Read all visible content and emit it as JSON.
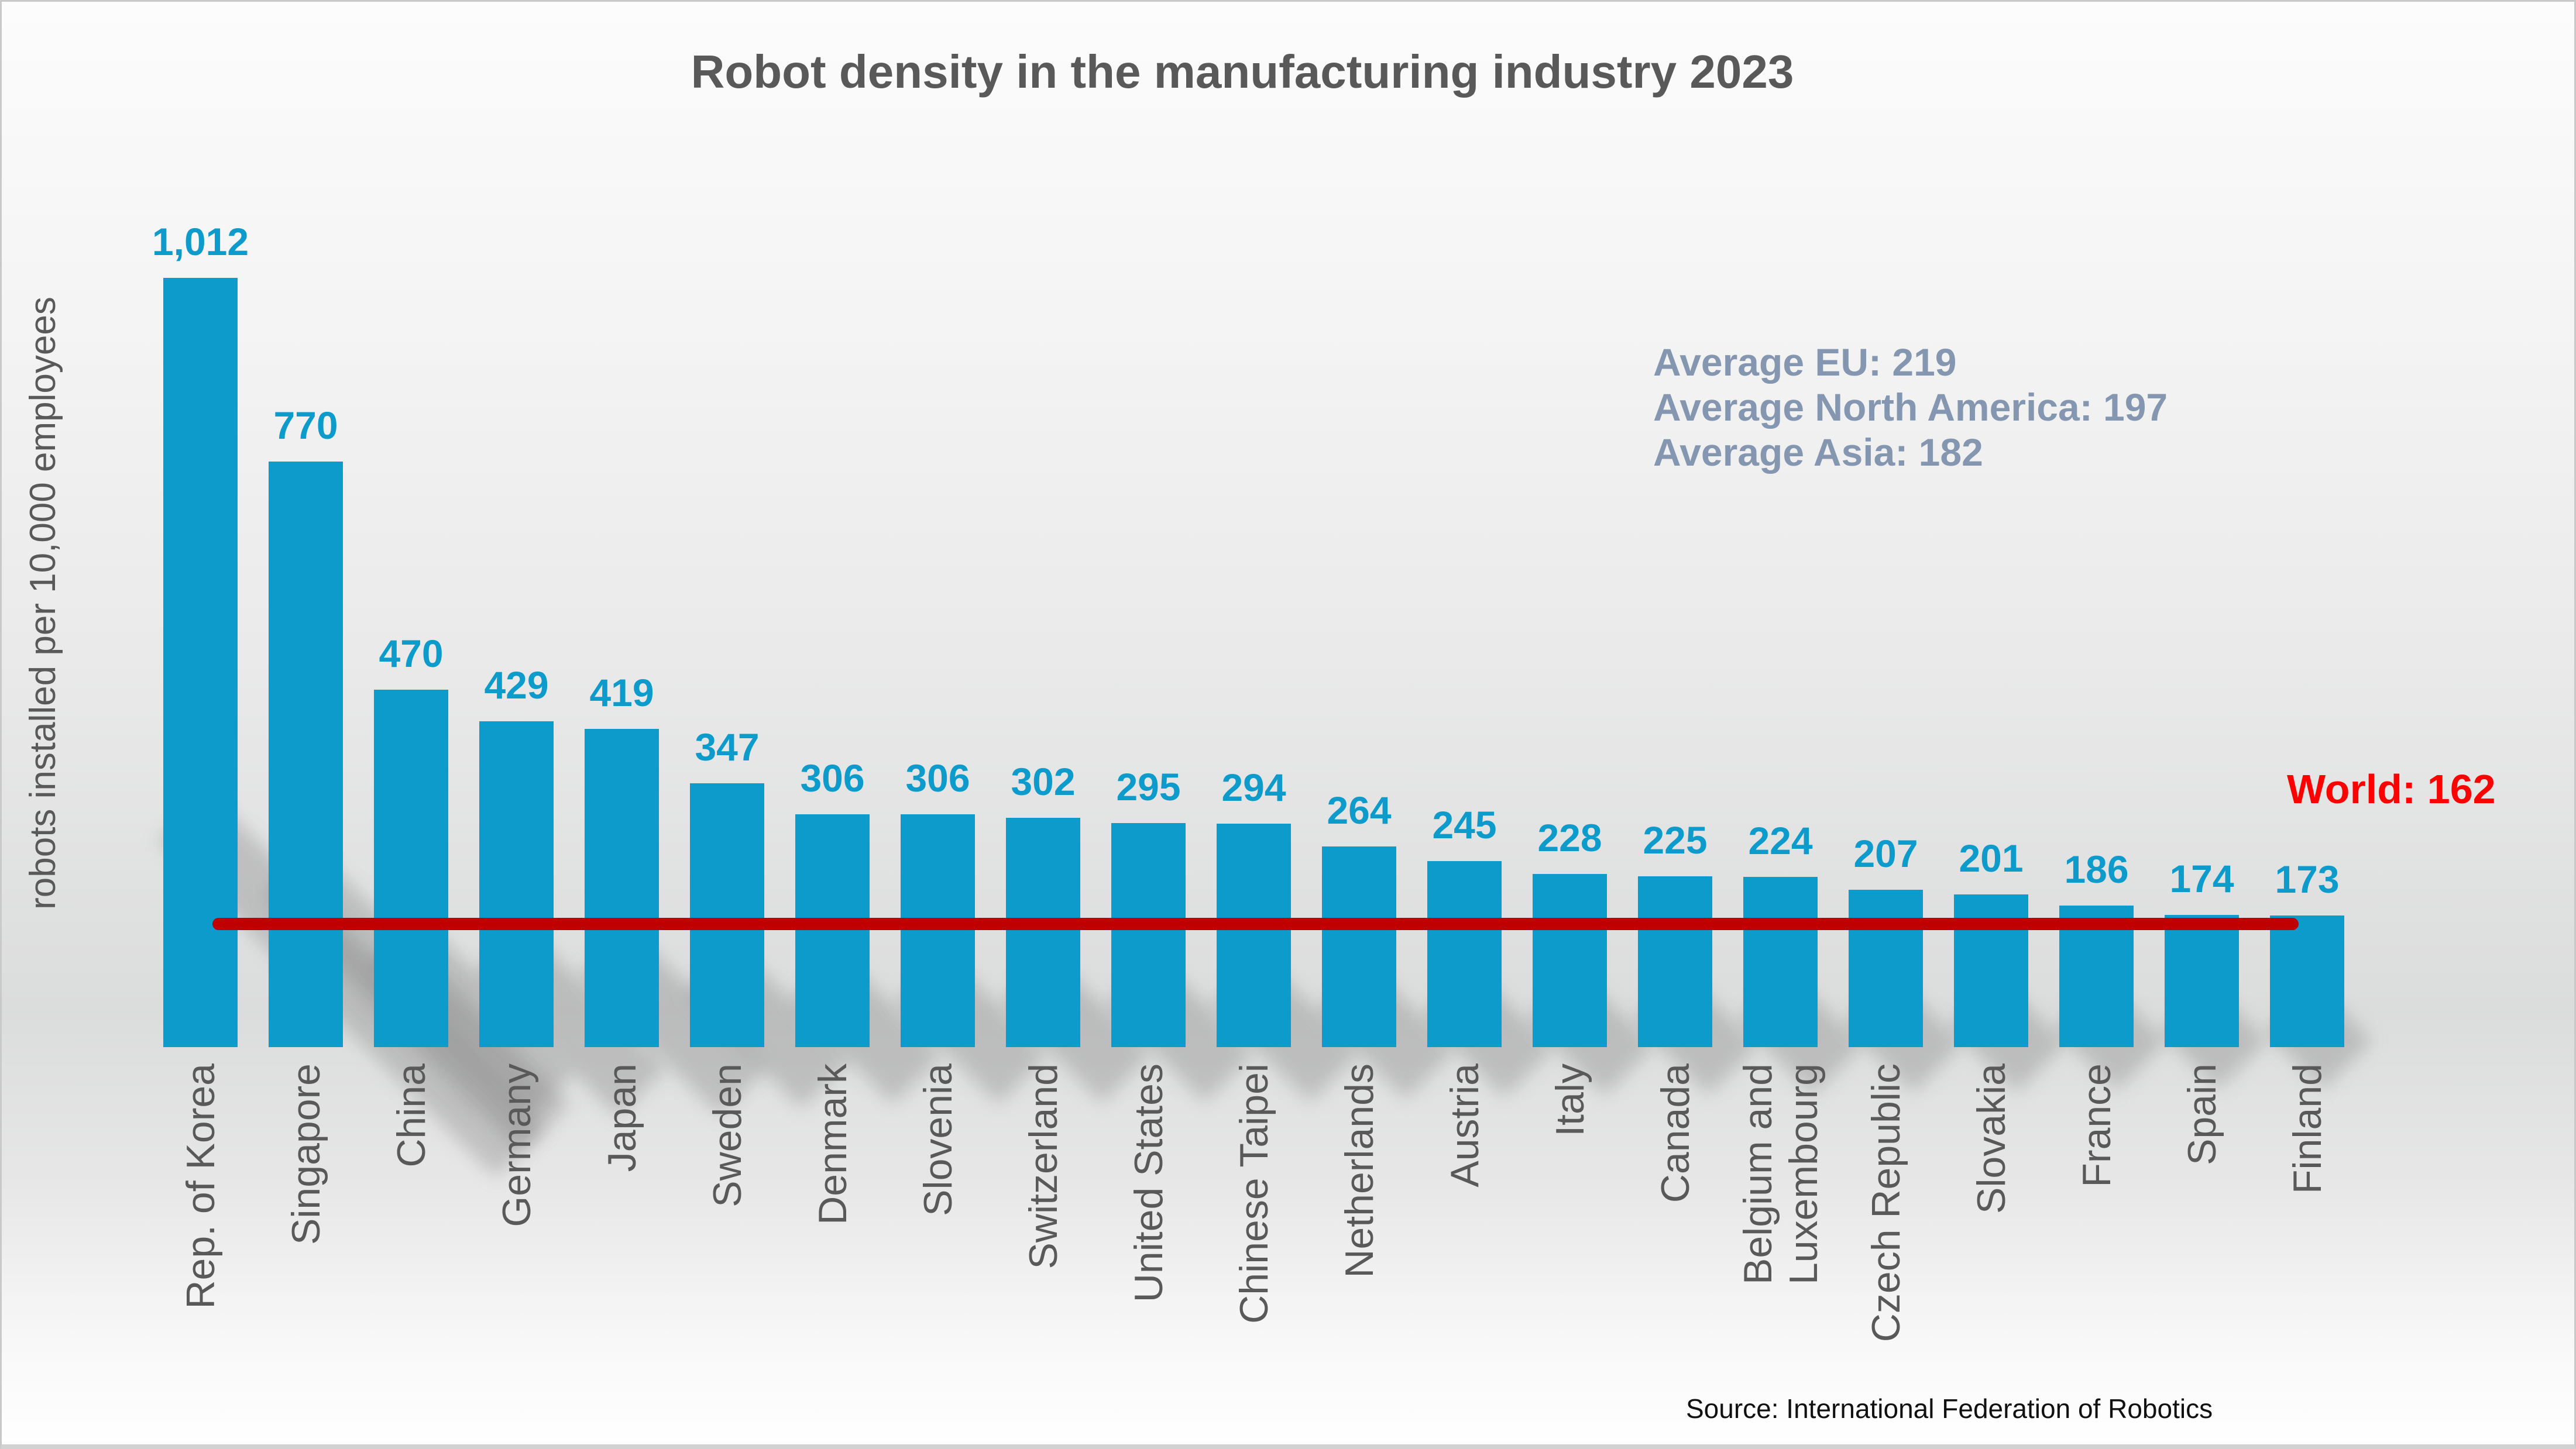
{
  "title": "Robot density in the manufacturing industry 2023",
  "source": {
    "text": "Source: International Federation of Robotics"
  },
  "annotations": {
    "eu": "Average EU: 219",
    "north_america": "Average North America: 197",
    "asia": "Average Asia: 182"
  },
  "colors": {
    "bar": "#0D9BCB",
    "value_label": "#0D9BCB",
    "reference_line": "#C00000",
    "reference_label": "#FF0000",
    "annotation_text": "#8496B0",
    "axis_text": "#595959",
    "title_text": "#595959",
    "source_text": "#111111"
  },
  "chart_data": {
    "type": "bar",
    "title": "Robot density in the manufacturing industry 2023",
    "xlabel": "",
    "ylabel": "robots installed per 10,000 employees",
    "grid": false,
    "legend": null,
    "ylim": [
      0,
      1100
    ],
    "categories": [
      "Rep. of Korea",
      "Singapore",
      "China",
      "Germany",
      "Japan",
      "Sweden",
      "Denmark",
      "Slovenia",
      "Switzerland",
      "United States",
      "Chinese Taipei",
      "Netherlands",
      "Austria",
      "Italy",
      "Canada",
      "Belgium and\nLuxembourg",
      "Czech Republic",
      "Slovakia",
      "France",
      "Spain",
      "Finland"
    ],
    "values": [
      1012,
      770,
      470,
      429,
      419,
      347,
      306,
      306,
      302,
      295,
      294,
      264,
      245,
      228,
      225,
      224,
      207,
      201,
      186,
      174,
      173
    ],
    "value_labels": [
      "1,012",
      "770",
      "470",
      "429",
      "419",
      "347",
      "306",
      "306",
      "302",
      "295",
      "294",
      "264",
      "245",
      "228",
      "225",
      "224",
      "207",
      "201",
      "186",
      "174",
      "173"
    ],
    "reference_line": {
      "label": "World: 162",
      "value": 162
    },
    "annotations": [
      "Average EU: 219",
      "Average North America: 197",
      "Average Asia: 182"
    ]
  }
}
